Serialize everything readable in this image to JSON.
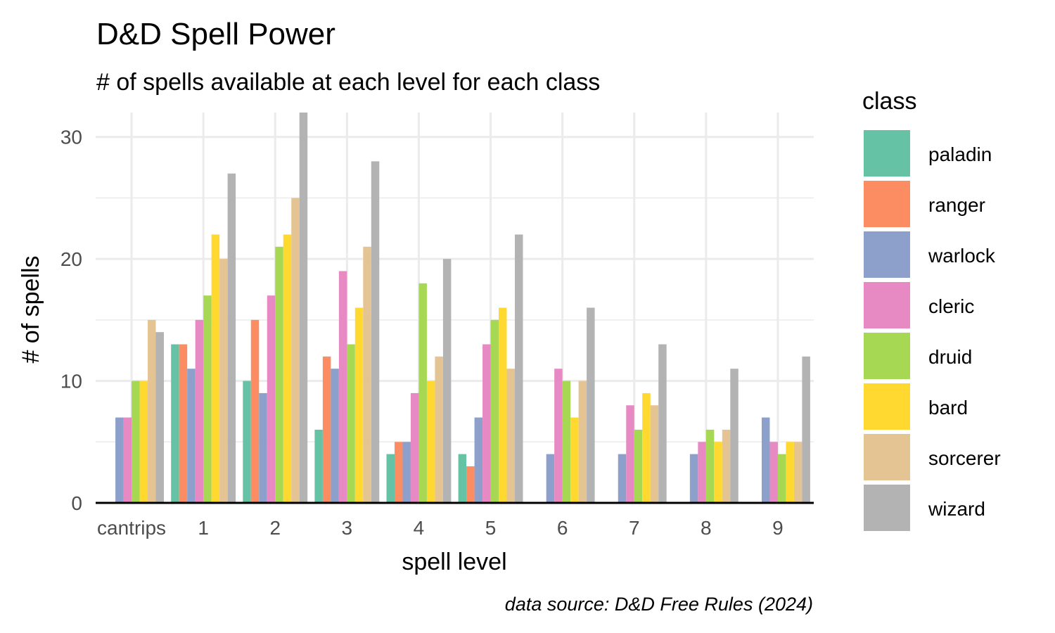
{
  "chart_data": {
    "type": "bar",
    "title": "D&D Spell Power",
    "subtitle": "# of spells available at each level for each class",
    "xlabel": "spell level",
    "ylabel": "# of spells",
    "caption": "data source: D&D Free Rules (2024)",
    "categories": [
      "cantrips",
      "1",
      "2",
      "3",
      "4",
      "5",
      "6",
      "7",
      "8",
      "9"
    ],
    "ylim": [
      0,
      32
    ],
    "yticks": [
      0,
      10,
      20,
      30
    ],
    "grid": true,
    "legend_title": "class",
    "legend_position": "right",
    "series": [
      {
        "name": "paladin",
        "color": "#66c2a5",
        "values": [
          0,
          13,
          10,
          6,
          4,
          4,
          0,
          0,
          0,
          0
        ]
      },
      {
        "name": "ranger",
        "color": "#fc8d62",
        "values": [
          0,
          13,
          15,
          12,
          5,
          3,
          0,
          0,
          0,
          0
        ]
      },
      {
        "name": "warlock",
        "color": "#8da0cb",
        "values": [
          7,
          11,
          9,
          11,
          5,
          7,
          4,
          4,
          4,
          7
        ]
      },
      {
        "name": "cleric",
        "color": "#e78ac3",
        "values": [
          7,
          15,
          17,
          19,
          9,
          13,
          11,
          8,
          5,
          5
        ]
      },
      {
        "name": "druid",
        "color": "#a6d854",
        "values": [
          10,
          17,
          21,
          13,
          18,
          15,
          10,
          6,
          6,
          4
        ]
      },
      {
        "name": "bard",
        "color": "#ffd92f",
        "values": [
          10,
          22,
          22,
          16,
          10,
          16,
          7,
          9,
          5,
          5
        ]
      },
      {
        "name": "sorcerer",
        "color": "#e5c494",
        "values": [
          15,
          20,
          25,
          21,
          12,
          11,
          10,
          8,
          6,
          5
        ]
      },
      {
        "name": "wizard",
        "color": "#b3b3b3",
        "values": [
          14,
          27,
          32,
          28,
          20,
          22,
          16,
          13,
          11,
          12
        ]
      }
    ]
  }
}
